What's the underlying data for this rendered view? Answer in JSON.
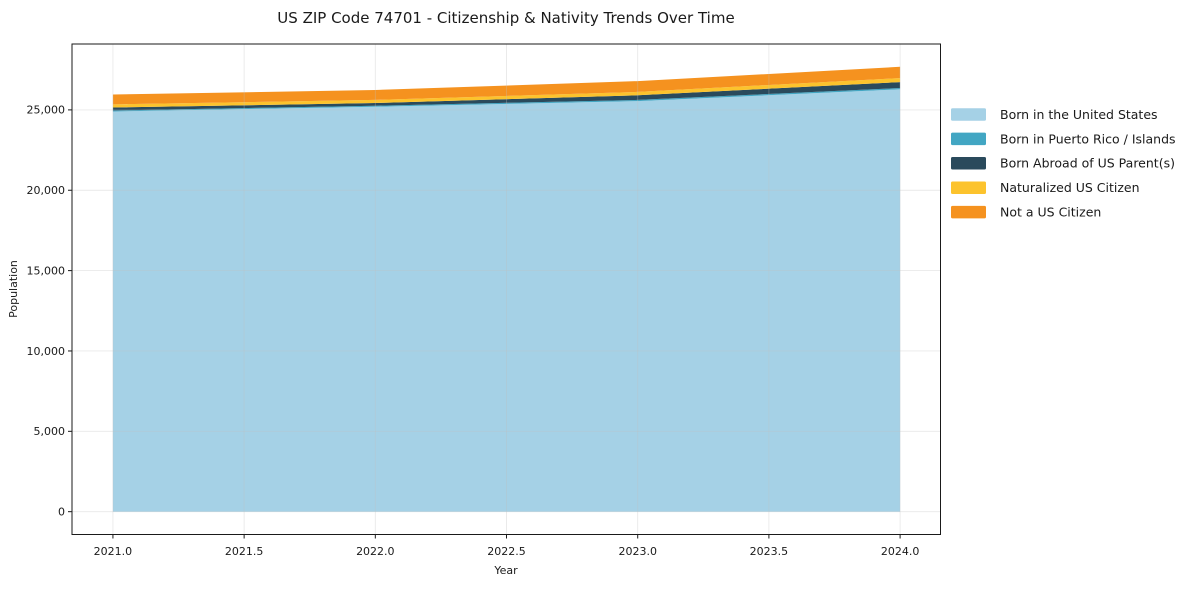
{
  "chart_data": {
    "type": "area",
    "stacked": true,
    "title": "US ZIP Code 74701 - Citizenship & Nativity Trends Over Time",
    "xlabel": "Year",
    "ylabel": "Population",
    "x": [
      2021,
      2022,
      2023,
      2024
    ],
    "series": [
      {
        "name": "Born in the United States",
        "color": "#a5d1e6",
        "values": [
          24900,
          25200,
          25550,
          26280
        ]
      },
      {
        "name": "Born in Puerto Rico / Islands",
        "color": "#42a6c3",
        "values": [
          60,
          60,
          70,
          80
        ]
      },
      {
        "name": "Born Abroad of US Parent(s)",
        "color": "#2a4a5c",
        "values": [
          190,
          170,
          290,
          370
        ]
      },
      {
        "name": "Naturalized US Citizen",
        "color": "#fcc32d",
        "values": [
          190,
          190,
          210,
          250
        ]
      },
      {
        "name": "Not a US Citizen",
        "color": "#f5921f",
        "values": [
          620,
          620,
          670,
          700
        ]
      }
    ],
    "totals": [
      25960,
      26240,
      26790,
      27680
    ],
    "xlim": [
      2020.844,
      2024.154
    ],
    "ylim": [
      -1420,
      29100
    ],
    "xticks": {
      "values": [
        2021.0,
        2021.5,
        2022.0,
        2022.5,
        2023.0,
        2023.5,
        2024.0
      ],
      "labels": [
        "2021.0",
        "2021.5",
        "2022.0",
        "2022.5",
        "2023.0",
        "2023.5",
        "2024.0"
      ]
    },
    "yticks": {
      "values": [
        0,
        5000,
        10000,
        15000,
        20000,
        25000
      ],
      "labels": [
        "0",
        "5,000",
        "10,000",
        "15,000",
        "20,000",
        "25,000"
      ]
    },
    "grid": true,
    "legend_position": "right",
    "colors": {
      "spine": "#1a1a1a",
      "grid": "#c0c0c0",
      "background": "#ffffff"
    }
  }
}
